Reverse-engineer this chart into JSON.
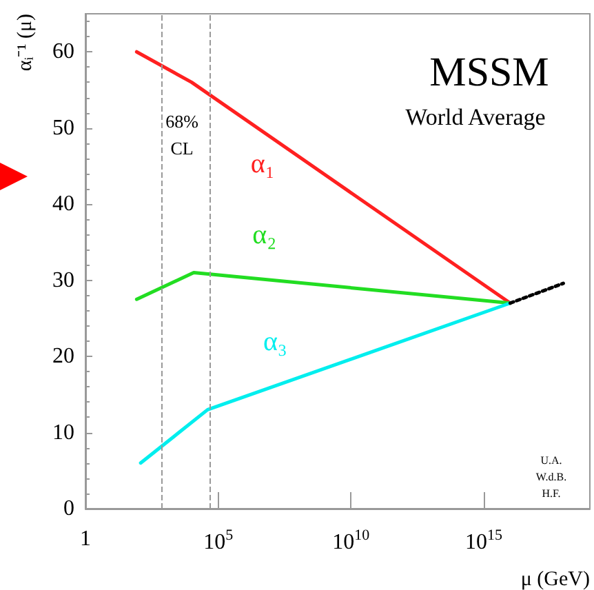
{
  "chart_data": {
    "type": "line",
    "xlabel": "μ (GeV)",
    "ylabel": "αᵢ⁻¹ (μ)",
    "log": "x",
    "grid": false,
    "legend": false,
    "marker": "none",
    "line_style": "solid",
    "xlim": [
      1,
      1e+19
    ],
    "xticks": [
      {
        "value": 1,
        "label": "1"
      },
      {
        "value": 100000,
        "label": "10$^{5}$"
      },
      {
        "value": 10000000000,
        "label": "10$^{10}$"
      },
      {
        "value": 1000000000000000.0,
        "label": "10$^{15}$"
      }
    ],
    "ylim": [
      0,
      65
    ],
    "yticks": [
      0,
      10,
      20,
      30,
      40,
      50,
      60
    ],
    "series": [
      {
        "name": "α₁",
        "color": "#ff2020",
        "x": [
          85,
          10000,
          1e+16
        ],
        "values": [
          60,
          56,
          27
        ]
      },
      {
        "name": "α₂",
        "color": "#22dd22",
        "x": [
          85,
          12000,
          1e+16
        ],
        "values": [
          27.5,
          31,
          27
        ]
      },
      {
        "name": "α₃",
        "color": "#00eeee",
        "x": [
          120,
          40000,
          1e+16
        ],
        "values": [
          6,
          13,
          27
        ]
      },
      {
        "color": "#000000",
        "line_style": "dotted",
        "x": [
          1e+16,
          1e+18
        ],
        "values": [
          27,
          29.6
        ]
      }
    ],
    "ref_lines": [
      {
        "axis": "x",
        "value": 700,
        "color": "#999999",
        "line_style": "dashed"
      },
      {
        "axis": "x",
        "value": 50000,
        "color": "#999999",
        "line_style": "dashed"
      }
    ],
    "annotations": [
      "MSSM",
      "World Average",
      "68% CL",
      "U.A. W.d.B. H.F."
    ]
  }
}
